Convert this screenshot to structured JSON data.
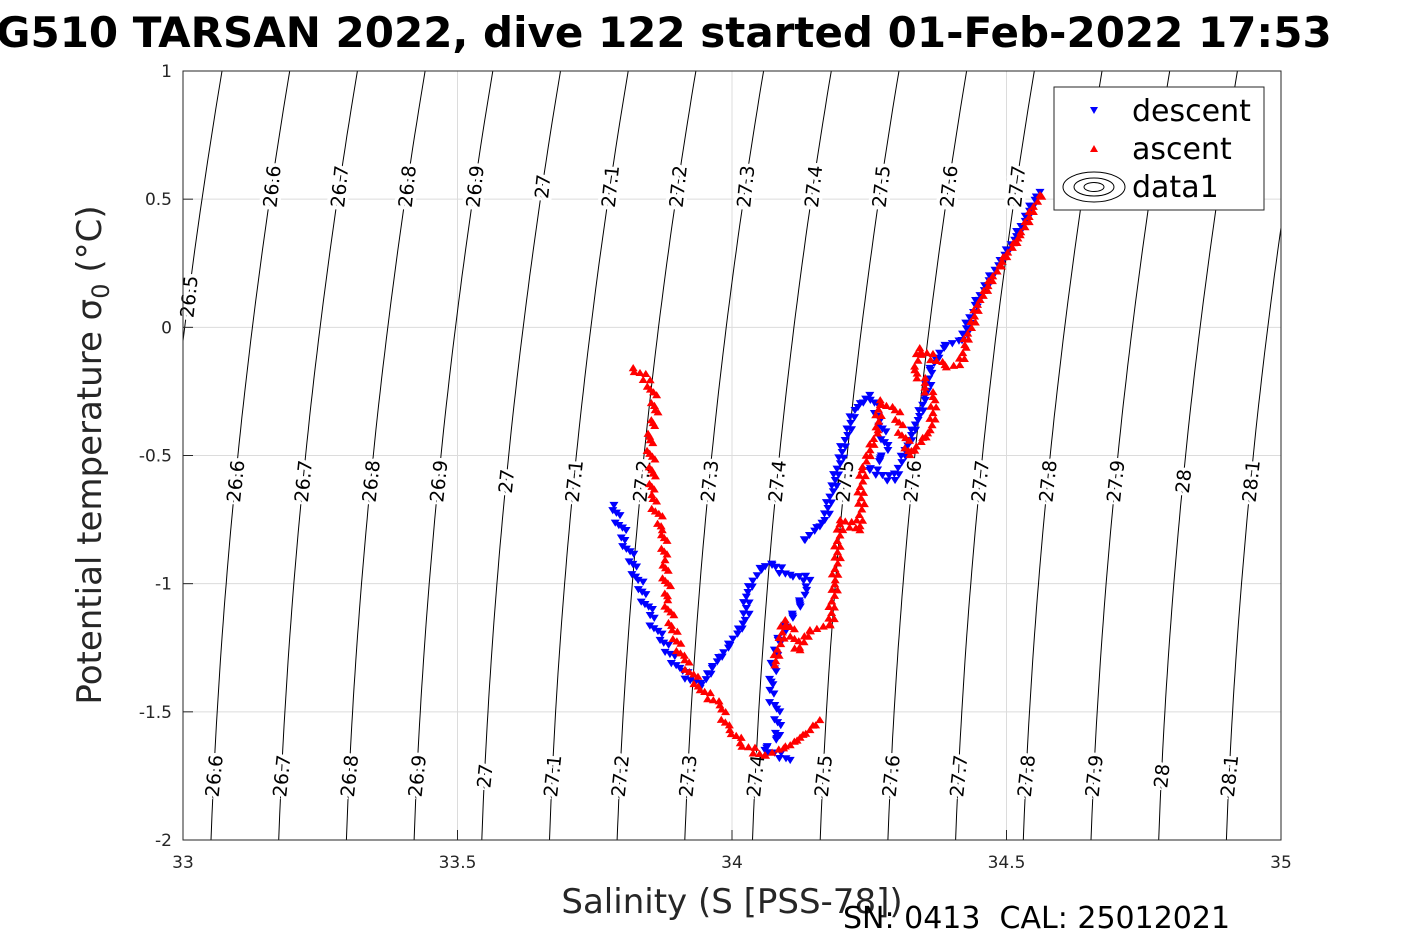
{
  "chart_data": {
    "type": "scatter",
    "title": "G510 TARSAN 2022, dive 122 started 01-Feb-2022 17:53",
    "xlabel": "Salinity (S [PSS-78])",
    "ylabel_main": "Potential temperature ",
    "ylabel_sym": "σ",
    "ylabel_sub": "0",
    "ylabel_unit": " (°C)",
    "footer": "SN: 0413  CAL: 25012021",
    "xlim": [
      33,
      35
    ],
    "ylim": [
      -2,
      1
    ],
    "xticks": [
      "33",
      "33.5",
      "34",
      "34.5",
      "35"
    ],
    "yticks": [
      "1",
      "0.5",
      "0",
      "-0.5",
      "-1",
      "-1.5",
      "-2"
    ],
    "grid": true,
    "legend_position": "top-right",
    "legend": [
      "descent",
      "ascent",
      "data1"
    ],
    "colors": {
      "descent": "#0000ff",
      "ascent": "#ff0000",
      "contour": "#000000",
      "grid": "#dcdcdc"
    },
    "isopycnals": {
      "levels": [
        26.5,
        26.6,
        26.7,
        26.8,
        26.9,
        27,
        27.1,
        27.2,
        27.3,
        27.4,
        27.5,
        27.6,
        27.7,
        27.8,
        27.9,
        28,
        28.1
      ],
      "labels_top": [
        "26.5",
        "26.6",
        "26.7",
        "26.8",
        "26.9",
        "27",
        "27.1",
        "27.2",
        "27.3",
        "27.4",
        "27.5",
        "27.6",
        "27.7"
      ],
      "labels_mid": [
        "26.6",
        "26.7",
        "26.8",
        "26.9",
        "27",
        "27.1",
        "27.2",
        "27.3",
        "27.4",
        "27.5",
        "27.6",
        "27.7",
        "27.8",
        "27.9",
        "28",
        "28.1"
      ],
      "labels_bot": [
        "26.6",
        "26.7",
        "26.8",
        "26.9",
        "27",
        "27.1",
        "27.2",
        "27.3",
        "27.4",
        "27.5",
        "27.6",
        "27.7",
        "27.8",
        "27.9",
        "28",
        "28.1"
      ]
    },
    "series": [
      {
        "name": "descent",
        "marker": "triangle-down",
        "points": [
          [
            33.785,
            -0.693
          ],
          [
            33.805,
            -0.83
          ],
          [
            33.829,
            -0.986
          ],
          [
            33.851,
            -1.123
          ],
          [
            33.869,
            -1.22
          ],
          [
            33.905,
            -1.329
          ],
          [
            33.942,
            -1.407
          ],
          [
            33.964,
            -1.329
          ],
          [
            33.996,
            -1.24
          ],
          [
            34.024,
            -1.142
          ],
          [
            34.029,
            -1.033
          ],
          [
            34.051,
            -0.939
          ],
          [
            34.073,
            -0.927
          ],
          [
            34.106,
            -0.966
          ],
          [
            34.142,
            -0.986
          ],
          [
            34.133,
            -1.044
          ],
          [
            34.084,
            -1.22
          ],
          [
            34.069,
            -1.415
          ],
          [
            34.078,
            -1.474
          ],
          [
            34.087,
            -1.591
          ],
          [
            34.06,
            -1.649
          ],
          [
            34.106,
            -1.688
          ],
          [
            34.133,
            -0.83
          ],
          [
            34.169,
            -0.752
          ],
          [
            34.188,
            -0.596
          ],
          [
            34.206,
            -0.44
          ],
          [
            34.224,
            -0.323
          ],
          [
            34.251,
            -0.264
          ],
          [
            34.27,
            -0.362
          ],
          [
            34.284,
            -0.479
          ],
          [
            34.251,
            -0.557
          ],
          [
            34.297,
            -0.596
          ],
          [
            34.315,
            -0.479
          ],
          [
            34.339,
            -0.362
          ],
          [
            34.352,
            -0.284
          ],
          [
            34.361,
            -0.167
          ],
          [
            34.388,
            -0.069
          ],
          [
            34.419,
            -0.05
          ],
          [
            34.443,
            0.087
          ],
          [
            34.479,
            0.224
          ],
          [
            34.515,
            0.341
          ],
          [
            34.552,
            0.497
          ],
          [
            34.561,
            0.528
          ]
        ]
      },
      {
        "name": "ascent",
        "marker": "triangle-up",
        "points": [
          [
            33.82,
            -0.159
          ],
          [
            33.851,
            -0.206
          ],
          [
            33.86,
            -0.323
          ],
          [
            33.851,
            -0.44
          ],
          [
            33.854,
            -0.557
          ],
          [
            33.854,
            -0.654
          ],
          [
            33.873,
            -0.791
          ],
          [
            33.878,
            -0.908
          ],
          [
            33.883,
            -1.064
          ],
          [
            33.891,
            -1.181
          ],
          [
            33.914,
            -1.298
          ],
          [
            33.942,
            -1.415
          ],
          [
            33.978,
            -1.474
          ],
          [
            33.996,
            -1.571
          ],
          [
            34.015,
            -1.622
          ],
          [
            34.06,
            -1.669
          ],
          [
            34.106,
            -1.63
          ],
          [
            34.142,
            -1.571
          ],
          [
            34.16,
            -1.532
          ],
          [
            34.078,
            -1.318
          ],
          [
            34.097,
            -1.142
          ],
          [
            34.124,
            -1.259
          ],
          [
            34.142,
            -1.181
          ],
          [
            34.179,
            -1.162
          ],
          [
            34.188,
            -0.986
          ],
          [
            34.197,
            -0.752
          ],
          [
            34.233,
            -0.791
          ],
          [
            34.237,
            -0.557
          ],
          [
            34.266,
            -0.401
          ],
          [
            34.27,
            -0.284
          ],
          [
            34.297,
            -0.323
          ],
          [
            34.324,
            -0.498
          ],
          [
            34.361,
            -0.401
          ],
          [
            34.37,
            -0.284
          ],
          [
            34.333,
            -0.167
          ],
          [
            34.342,
            -0.081
          ],
          [
            34.388,
            -0.147
          ],
          [
            34.415,
            -0.147
          ],
          [
            34.424,
            -0.069
          ],
          [
            34.452,
            0.107
          ],
          [
            34.488,
            0.243
          ],
          [
            34.525,
            0.36
          ],
          [
            34.561,
            0.516
          ]
        ]
      }
    ]
  }
}
